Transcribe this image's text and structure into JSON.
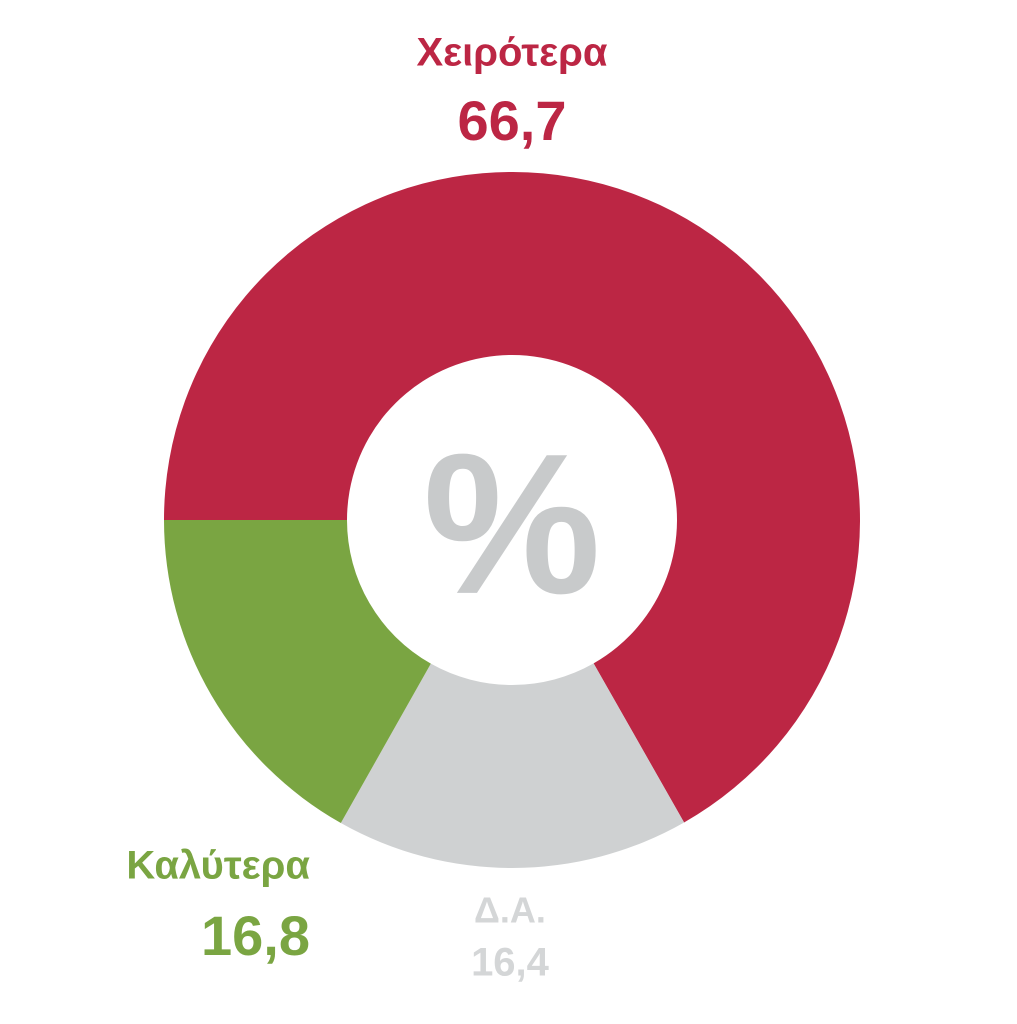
{
  "chart_data": {
    "type": "donut",
    "center_label": "%",
    "categories": [
      "Χειρότερα",
      "Δ.Α.",
      "Καλύτερα"
    ],
    "values": [
      66.7,
      16.4,
      16.8
    ],
    "value_labels": [
      "66,7",
      "16,4",
      "16,8"
    ],
    "colors": [
      "#bc2644",
      "#cfd1d2",
      "#7aa542"
    ]
  }
}
